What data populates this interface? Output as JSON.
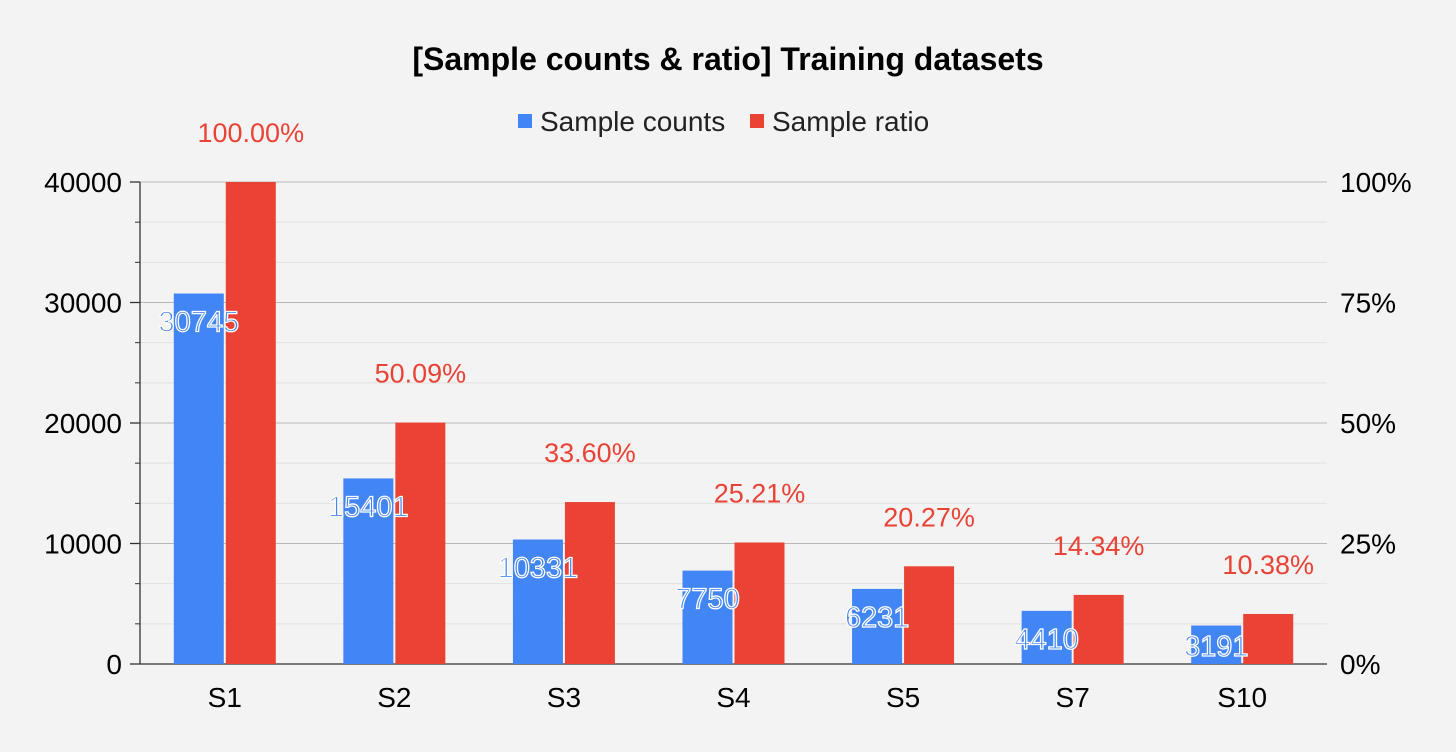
{
  "chart_data": {
    "type": "bar",
    "title": "[Sample counts & ratio] Training datasets",
    "categories": [
      "S1",
      "S2",
      "S3",
      "S4",
      "S5",
      "S7",
      "S10"
    ],
    "series": [
      {
        "name": "Sample counts",
        "axis": "left",
        "color": "#4285f4",
        "values": [
          30745,
          15401,
          10331,
          7750,
          6231,
          4410,
          3191
        ],
        "labels": [
          "30745",
          "15401",
          "10331",
          "7750",
          "6231",
          "4410",
          "3191"
        ]
      },
      {
        "name": "Sample ratio",
        "axis": "right",
        "color": "#ea4335",
        "values": [
          100.0,
          50.09,
          33.6,
          25.21,
          20.27,
          14.34,
          10.38
        ],
        "labels": [
          "100.00%",
          "50.09%",
          "33.60%",
          "25.21%",
          "20.27%",
          "14.34%",
          "10.38%"
        ]
      }
    ],
    "y_left": {
      "min": 0,
      "max": 40000,
      "ticks": [
        "0",
        "10000",
        "20000",
        "30000",
        "40000"
      ]
    },
    "y_right": {
      "min": 0,
      "max": 100,
      "ticks": [
        "0%",
        "25%",
        "50%",
        "75%",
        "100%"
      ]
    },
    "legend_position": "top-center",
    "grid": true
  }
}
